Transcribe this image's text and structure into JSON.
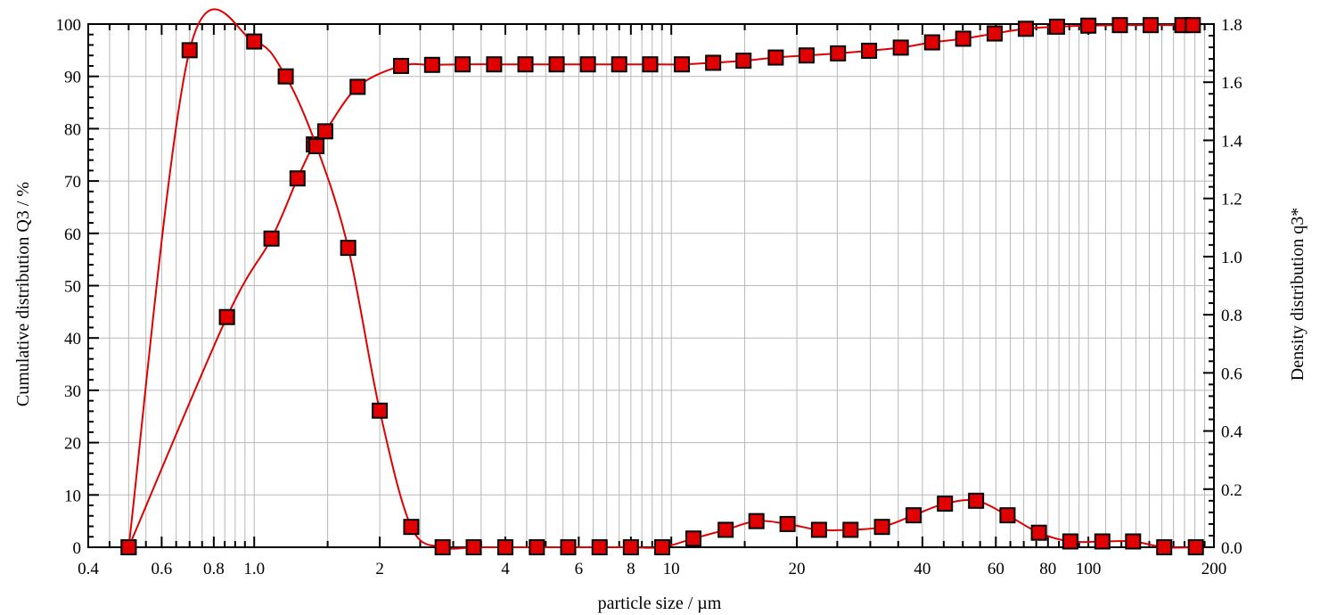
{
  "chart_data": {
    "type": "line",
    "xlabel": "particle size / µm",
    "ylabel_left": "Cumulative distribution Q3 / %",
    "ylabel_right": "Density distribution q3*",
    "x_scale": "log",
    "xlim": [
      0.4,
      200
    ],
    "ylim_left": [
      0,
      100
    ],
    "ylim_right": [
      0,
      1.8
    ],
    "grid": true,
    "x_tick_labels": [
      "0.4",
      "0.6",
      "0.8",
      "1.0",
      "2",
      "4",
      "6",
      "8",
      "10",
      "20",
      "40",
      "60",
      "80",
      "100",
      "200"
    ],
    "y_left_tick_labels": [
      "0",
      "10",
      "20",
      "30",
      "40",
      "50",
      "60",
      "70",
      "80",
      "90",
      "100"
    ],
    "y_right_tick_labels": [
      "0.0",
      "0.2",
      "0.4",
      "0.6",
      "0.8",
      "1.0",
      "1.2",
      "1.4",
      "1.6",
      "1.8"
    ],
    "series": [
      {
        "axis": "left",
        "color": "#e00000",
        "marker": "square",
        "x": [
          0.5,
          0.86,
          1.1,
          1.27,
          1.39,
          1.48,
          1.77,
          2.25,
          2.67,
          3.16,
          3.76,
          4.47,
          5.31,
          6.31,
          7.5,
          8.9,
          10.6,
          12.6,
          14.9,
          17.8,
          21.1,
          25.1,
          29.8,
          35.5,
          42.2,
          50.1,
          59.6,
          70.8,
          84.1,
          100,
          119,
          141,
          168,
          178
        ],
        "y": [
          0,
          44,
          59,
          70.5,
          77,
          79.5,
          88,
          92,
          92.2,
          92.3,
          92.3,
          92.3,
          92.3,
          92.3,
          92.3,
          92.3,
          92.3,
          92.6,
          93,
          93.6,
          94,
          94.4,
          94.9,
          95.5,
          96.5,
          97.2,
          98.2,
          99.1,
          99.5,
          99.7,
          99.8,
          99.8,
          99.8,
          99.8
        ]
      },
      {
        "axis": "right",
        "color": "#e00000",
        "marker": "square",
        "x": [
          0.5,
          0.7,
          1.0,
          1.19,
          1.41,
          1.68,
          2.0,
          2.38,
          2.83,
          3.36,
          4.0,
          4.76,
          5.66,
          6.73,
          8.0,
          9.51,
          11.3,
          13.5,
          16.0,
          19.0,
          22.6,
          26.9,
          32.0,
          38.1,
          45.3,
          53.8,
          64.0,
          76.1,
          90.5,
          108,
          128,
          152,
          181
        ],
        "y": [
          0.0,
          1.71,
          1.74,
          1.62,
          1.38,
          1.03,
          0.47,
          0.07,
          0.0,
          0.0,
          0.0,
          0.0,
          0.0,
          0.0,
          0.0,
          0.0,
          0.03,
          0.06,
          0.09,
          0.08,
          0.06,
          0.06,
          0.07,
          0.11,
          0.15,
          0.16,
          0.11,
          0.05,
          0.02,
          0.02,
          0.02,
          0.0,
          0.0
        ]
      }
    ]
  }
}
